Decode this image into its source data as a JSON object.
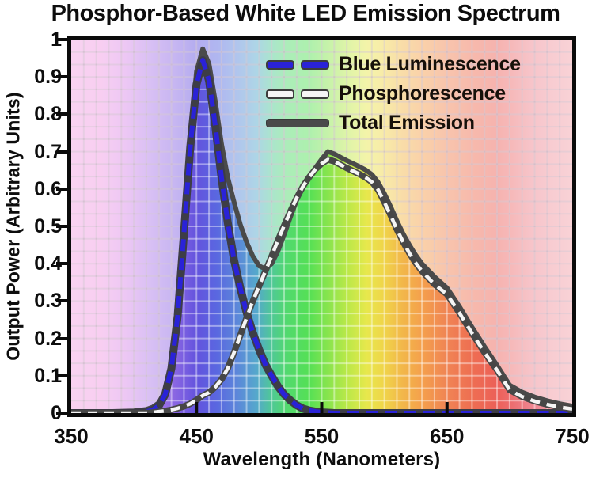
{
  "chart_data": {
    "type": "line",
    "title": "Phosphor-Based White LED Emission Spectrum",
    "xlabel": "Wavelength (Nanometers)",
    "ylabel": "Output Power (Arbitrary Units)",
    "xlim": [
      350,
      750
    ],
    "ylim": [
      0,
      1
    ],
    "xticks": [
      350,
      450,
      550,
      650,
      750
    ],
    "ytick_values": [
      0,
      0.1,
      0.2,
      0.3,
      0.4,
      0.5,
      0.6,
      0.7,
      0.8,
      0.9,
      1
    ],
    "ytick_labels": [
      "0",
      "0.1",
      "0.2",
      "0.3",
      "0.4",
      "0.5",
      "0.6",
      "0.7",
      "0.8",
      "0.9",
      "1"
    ],
    "grid": true,
    "legend_position": "top-center-inside",
    "x": [
      350,
      380,
      400,
      410,
      415,
      420,
      425,
      430,
      435,
      440,
      445,
      450,
      455,
      460,
      465,
      470,
      475,
      480,
      485,
      490,
      495,
      500,
      505,
      510,
      515,
      520,
      525,
      530,
      535,
      540,
      545,
      550,
      555,
      560,
      565,
      570,
      575,
      580,
      585,
      590,
      595,
      600,
      605,
      610,
      615,
      620,
      625,
      630,
      640,
      650,
      660,
      670,
      680,
      690,
      700,
      710,
      720,
      730,
      740,
      750
    ],
    "series": [
      {
        "name": "Blue Luminescence",
        "color": "#2a22d8",
        "outline": "#3d3d46",
        "line_style": "dashed",
        "values": [
          0,
          0,
          0,
          0.004,
          0.008,
          0.02,
          0.05,
          0.12,
          0.26,
          0.48,
          0.71,
          0.88,
          0.945,
          0.89,
          0.77,
          0.63,
          0.51,
          0.41,
          0.335,
          0.27,
          0.215,
          0.17,
          0.13,
          0.1,
          0.072,
          0.05,
          0.034,
          0.021,
          0.012,
          0.007,
          0.004,
          0.002,
          0.001,
          0,
          0,
          0,
          0,
          0,
          0,
          0,
          0,
          0,
          0,
          0,
          0,
          0,
          0,
          0,
          0,
          0,
          0,
          0,
          0,
          0,
          0,
          0,
          0,
          0,
          0,
          0
        ]
      },
      {
        "name": "Phosphorescence",
        "color": "#f5f5f5",
        "outline": "#474747",
        "line_style": "dashed",
        "values": [
          0,
          0,
          0,
          0,
          0.002,
          0.004,
          0.006,
          0.009,
          0.013,
          0.018,
          0.025,
          0.035,
          0.047,
          0.055,
          0.07,
          0.09,
          0.12,
          0.162,
          0.208,
          0.255,
          0.3,
          0.34,
          0.38,
          0.42,
          0.462,
          0.502,
          0.54,
          0.576,
          0.607,
          0.632,
          0.653,
          0.668,
          0.679,
          0.674,
          0.665,
          0.656,
          0.648,
          0.64,
          0.631,
          0.619,
          0.598,
          0.565,
          0.53,
          0.492,
          0.458,
          0.428,
          0.402,
          0.38,
          0.345,
          0.318,
          0.268,
          0.214,
          0.162,
          0.115,
          0.062,
          0.044,
          0.032,
          0.023,
          0.016,
          0.011
        ]
      },
      {
        "name": "Total Emission",
        "color": "#4a4a4a",
        "outline": null,
        "line_style": "solid",
        "values": [
          0.004,
          0.004,
          0.006,
          0.01,
          0.016,
          0.028,
          0.06,
          0.135,
          0.28,
          0.5,
          0.735,
          0.915,
          0.975,
          0.935,
          0.835,
          0.72,
          0.63,
          0.565,
          0.505,
          0.458,
          0.42,
          0.394,
          0.386,
          0.4,
          0.433,
          0.478,
          0.525,
          0.57,
          0.605,
          0.633,
          0.657,
          0.68,
          0.7,
          0.694,
          0.685,
          0.676,
          0.668,
          0.66,
          0.651,
          0.639,
          0.618,
          0.588,
          0.553,
          0.515,
          0.48,
          0.45,
          0.423,
          0.4,
          0.365,
          0.335,
          0.285,
          0.23,
          0.178,
          0.128,
          0.075,
          0.056,
          0.043,
          0.033,
          0.025,
          0.019
        ]
      }
    ],
    "background_spectrum_stops": [
      [
        0,
        "#f2a2e2"
      ],
      [
        6,
        "#f09ae2"
      ],
      [
        11,
        "#d88ae8"
      ],
      [
        16,
        "#ac7ae8"
      ],
      [
        21,
        "#8765e2"
      ],
      [
        25,
        "#6353de"
      ],
      [
        29,
        "#5a67e0"
      ],
      [
        33,
        "#5c86da"
      ],
      [
        37,
        "#55a8cc"
      ],
      [
        40,
        "#4fc896"
      ],
      [
        43,
        "#52d96e"
      ],
      [
        47.5,
        "#55e055"
      ],
      [
        51,
        "#85e44e"
      ],
      [
        55,
        "#b9e848"
      ],
      [
        59,
        "#e7e84c"
      ],
      [
        62.5,
        "#f0d44a"
      ],
      [
        66,
        "#f2b84a"
      ],
      [
        70,
        "#f4a04c"
      ],
      [
        75,
        "#f08454"
      ],
      [
        80,
        "#ee6e52"
      ],
      [
        85,
        "#ec6058"
      ],
      [
        88,
        "#ec6e70"
      ],
      [
        92,
        "#ee8590"
      ],
      [
        96,
        "#f095a0"
      ],
      [
        100,
        "#f2a2aa"
      ]
    ],
    "grid_color_light": "rgba(255,255,255,0.42)",
    "grid_color_dark": "rgba(90,40,80,0.12)",
    "wash_above_total": "rgba(255,255,255,0.52)",
    "axis_color": "#0b0b0b"
  }
}
